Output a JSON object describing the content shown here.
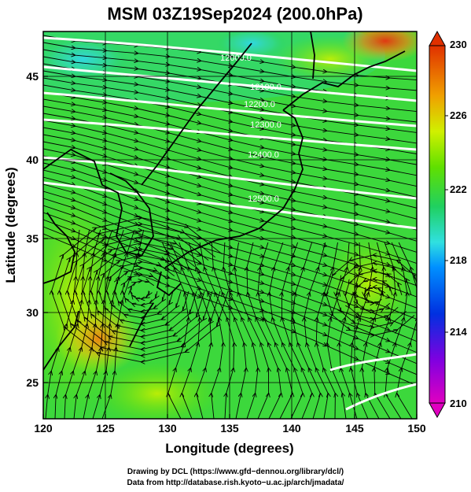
{
  "title": "MSM 03Z19Sep2024 (200.0hPa)",
  "x_axis": {
    "label": "Longitude (degrees)",
    "ticks": [
      "120",
      "125",
      "130",
      "135",
      "140",
      "145",
      "150"
    ],
    "range": [
      120,
      150
    ]
  },
  "y_axis": {
    "label": "Latitude  (degrees)",
    "ticks": [
      "25",
      "30",
      "35",
      "40",
      "45"
    ],
    "range": [
      22.4,
      47.6
    ]
  },
  "colorbar": {
    "ticks": [
      "230",
      "226",
      "222",
      "218",
      "214",
      "210"
    ],
    "range": [
      210,
      230
    ],
    "colors": [
      "#e000c0",
      "#0000d0",
      "#0090ff",
      "#30e0e0",
      "#20d060",
      "#60e000",
      "#d0f000",
      "#f0a000",
      "#e03000"
    ]
  },
  "contours": {
    "color": "#ffffff",
    "labels": [
      "12000.0",
      "12100.0",
      "12200.0",
      "12300.0",
      "12400.0",
      "12500.0"
    ]
  },
  "footer": {
    "line1": "Drawing by DCL (https://www.gfd−dennou.org/library/dcl/)",
    "line2": "Data from http://database.rish.kyoto−u.ac.jp/arch/jmadata/"
  }
}
